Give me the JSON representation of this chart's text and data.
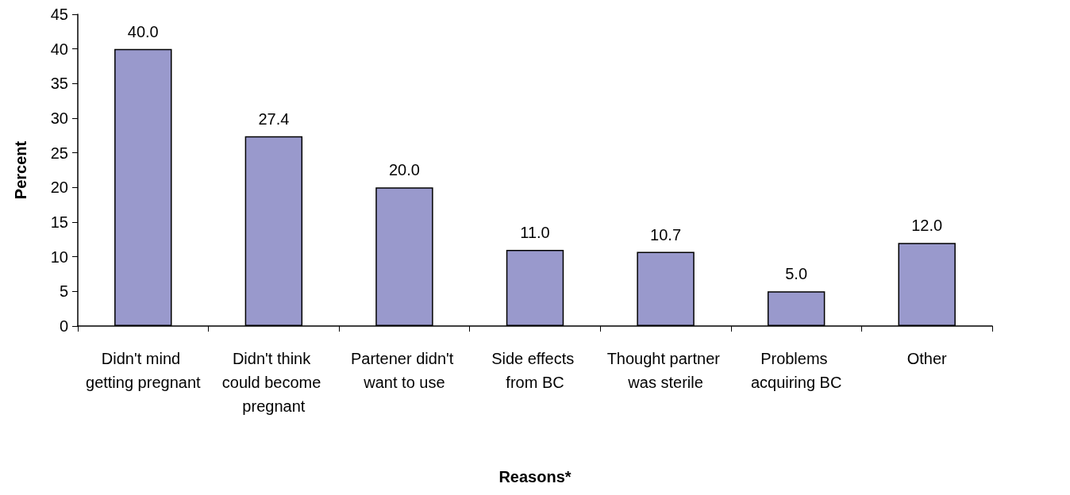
{
  "chart_data": {
    "type": "bar",
    "xlabel": "Reasons*",
    "ylabel": "Percent",
    "categories": [
      "Didn't mind getting pregnant",
      "Didn't think could become pregnant",
      "Partener didn't want to use",
      "Side effects from BC",
      "Thought partner was sterile",
      "Problems acquiring BC",
      "Other"
    ],
    "values": [
      40.0,
      27.4,
      20.0,
      11.0,
      10.7,
      5.0,
      12.0
    ],
    "value_labels": [
      "40.0",
      "27.4",
      "20.0",
      "11.0",
      "10.7",
      "5.0",
      "12.0"
    ],
    "color": "#9999cc",
    "ylim": [
      0,
      45
    ],
    "yticks": [
      0,
      5,
      10,
      15,
      20,
      25,
      30,
      35,
      40,
      45
    ],
    "grid": false
  }
}
